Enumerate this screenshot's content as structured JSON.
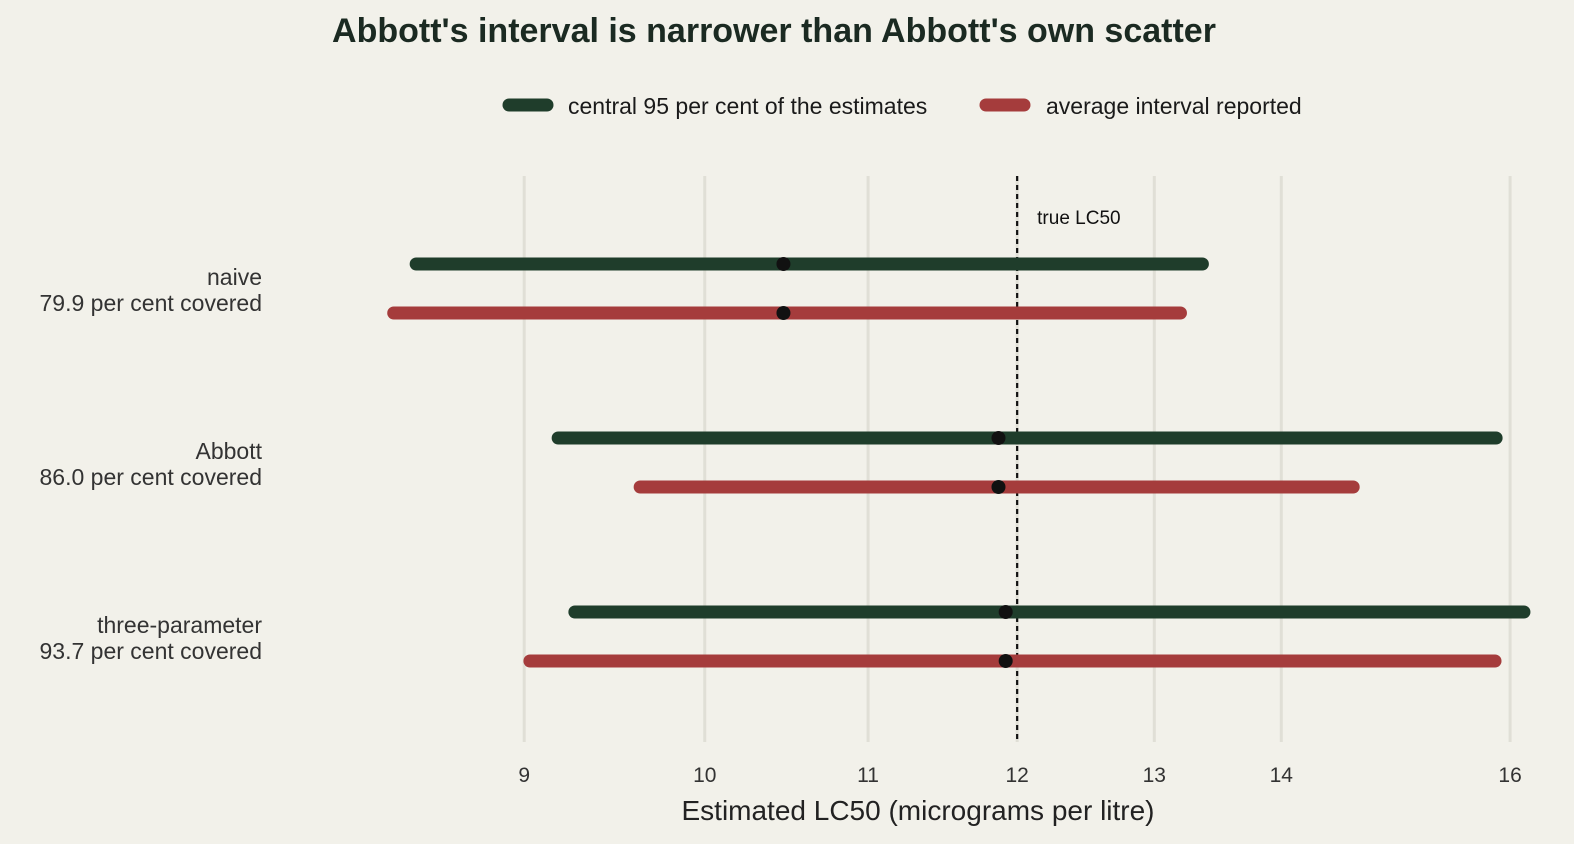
{
  "chart_data": {
    "type": "interval",
    "title": "Abbott's interval is narrower than Abbott's own scatter",
    "xlabel": "Estimated LC50 (micrograms per litre)",
    "x_scale": "log",
    "xlim": [
      7.75,
      16.55
    ],
    "xticks": [
      9,
      10,
      11,
      12,
      13,
      14,
      16
    ],
    "grid": "vertical",
    "legend_position": "top",
    "series": [
      {
        "name": "central 95 per cent of the estimates",
        "color": "#1f3d2b"
      },
      {
        "name": "average interval reported",
        "color": "#a53c3c"
      }
    ],
    "categories": [
      {
        "label": "naive",
        "coverage": "79.9 per cent covered",
        "point": 10.47,
        "scatter": [
          8.45,
          13.37
        ],
        "reported": [
          8.34,
          13.2
        ]
      },
      {
        "label": "Abbott",
        "coverage": "86.0 per cent covered",
        "point": 11.87,
        "scatter": [
          9.18,
          15.87
        ],
        "reported": [
          9.63,
          14.6
        ]
      },
      {
        "label": "three-parameter",
        "coverage": "93.7 per cent covered",
        "point": 11.92,
        "scatter": [
          9.27,
          16.13
        ],
        "reported": [
          9.03,
          15.86
        ]
      }
    ],
    "reference": {
      "value": 12,
      "label": "true LC50"
    },
    "point_color": "#111111"
  }
}
